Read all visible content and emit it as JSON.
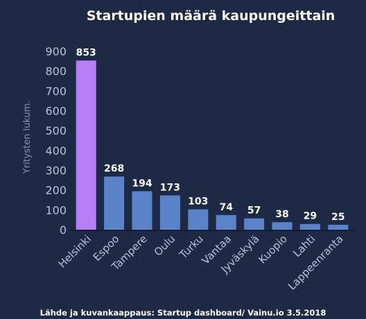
{
  "chart_data": {
    "type": "bar",
    "title": "Startupien määrä kaupungeittain",
    "ylabel": "Yritysten lukum.",
    "xlabel": "",
    "categories": [
      "Helsinki",
      "Espoo",
      "Tampere",
      "Oulu",
      "Turku",
      "Vantaa",
      "Jyväskylä",
      "Kuopio",
      "Lahti",
      "Lappeenranta"
    ],
    "values": [
      853,
      268,
      194,
      173,
      103,
      74,
      57,
      38,
      29,
      25
    ],
    "ylim": [
      0,
      900
    ],
    "yticks": [
      0,
      100,
      200,
      300,
      400,
      500,
      600,
      700,
      800,
      900
    ],
    "grid": false,
    "highlight_index": 0,
    "colors": {
      "background": "#1e2a45",
      "bar": "#5b83c9",
      "highlight": "#b57ef5",
      "axis": "#141c2e"
    }
  },
  "source": "Lähde ja kuvankaappaus: Startup dashboard/ Vainu.io 3.5.2018"
}
